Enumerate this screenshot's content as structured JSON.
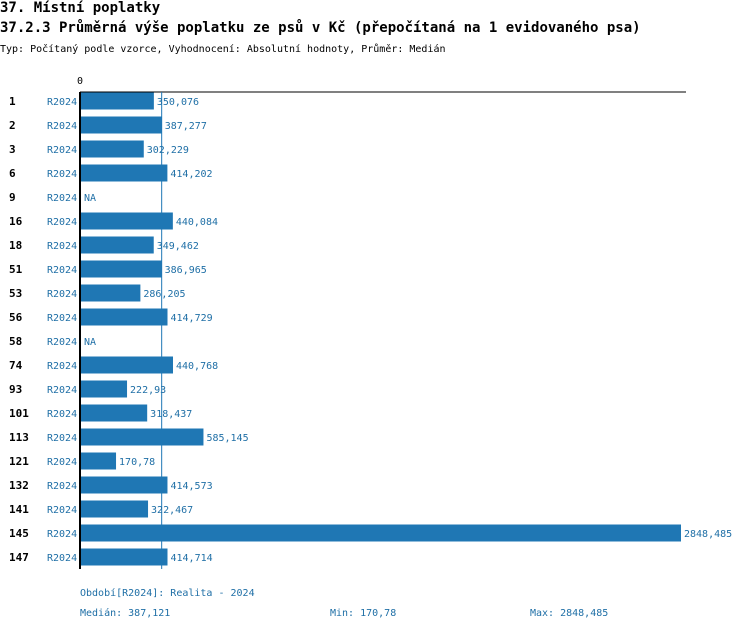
{
  "header": {
    "title": "37. Místní poplatky",
    "subtitle": "37.2.3 Průměrná výše poplatku ze psů v Kč (přepočítaná na 1 evidovaného psa)",
    "meta": "Typ: Počítaný podle vzorce, Vyhodnocení: Absolutní hodnoty, Průměr: Medián"
  },
  "colors": {
    "bar": "#1f77b4",
    "label": "#1f6fa6",
    "axis": "#000000",
    "median_line": "#1f77b4"
  },
  "chart_data": {
    "type": "bar",
    "orientation": "horizontal",
    "axis_zero_label": "0",
    "series_label": "R2024",
    "median": 387.121,
    "xlim": [
      0,
      2848.485
    ],
    "categories": [
      "1",
      "2",
      "3",
      "6",
      "9",
      "16",
      "18",
      "51",
      "53",
      "56",
      "58",
      "74",
      "93",
      "101",
      "113",
      "121",
      "132",
      "141",
      "145",
      "147"
    ],
    "values": [
      350.076,
      387.277,
      302.229,
      414.202,
      null,
      440.084,
      349.462,
      386.965,
      286.205,
      414.729,
      null,
      440.768,
      222.93,
      318.437,
      585.145,
      170.78,
      414.573,
      322.467,
      2848.485,
      414.714
    ],
    "value_labels": [
      "350,076",
      "387,277",
      "302,229",
      "414,202",
      "NA",
      "440,084",
      "349,462",
      "386,965",
      "286,205",
      "414,729",
      "NA",
      "440,768",
      "222,93",
      "318,437",
      "585,145",
      "170,78",
      "414,573",
      "322,467",
      "2848,485",
      "414,714"
    ]
  },
  "footer": {
    "period": "Období[R2024]: Realita - 2024",
    "median": "Medián: 387,121",
    "min": "Min: 170,78",
    "max": "Max: 2848,485"
  }
}
